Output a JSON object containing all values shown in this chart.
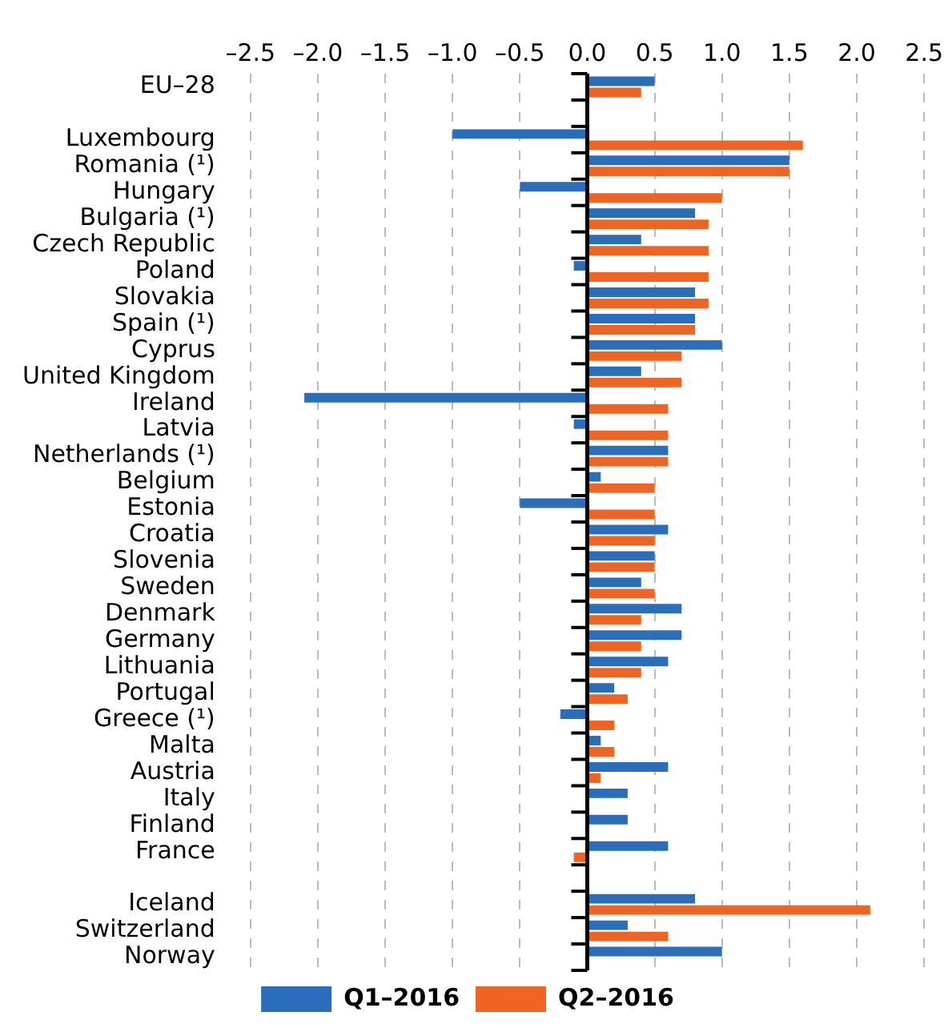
{
  "chart_data": {
    "type": "bar",
    "orientation": "horizontal",
    "categories": [
      "EU–28",
      null,
      "Luxembourg",
      "Romania (¹)",
      "Hungary",
      "Bulgaria (¹)",
      "Czech Republic",
      "Poland",
      "Slovakia",
      "Spain (¹)",
      "Cyprus",
      "United Kingdom",
      "Ireland",
      "Latvia",
      "Netherlands (¹)",
      "Belgium",
      "Estonia",
      "Croatia",
      "Slovenia",
      "Sweden",
      "Denmark",
      "Germany",
      "Lithuania",
      "Portugal",
      "Greece (¹)",
      "Malta",
      "Austria",
      "Italy",
      "Finland",
      "France",
      null,
      "Iceland",
      "Switzerland",
      "Norway"
    ],
    "series": [
      {
        "name": "Q1–2016",
        "color": "#2a6ebb",
        "values": [
          0.5,
          null,
          -1.0,
          1.5,
          -0.5,
          0.8,
          0.4,
          -0.1,
          0.8,
          0.8,
          1.0,
          0.4,
          -2.1,
          -0.1,
          0.6,
          0.1,
          -0.5,
          0.6,
          0.5,
          0.4,
          0.7,
          0.7,
          0.6,
          0.2,
          -0.2,
          0.1,
          0.6,
          0.3,
          0.3,
          0.6,
          null,
          0.8,
          0.3,
          1.0
        ]
      },
      {
        "name": "Q2–2016",
        "color": "#f06423",
        "values": [
          0.4,
          null,
          1.6,
          1.5,
          1.0,
          0.9,
          0.9,
          0.9,
          0.9,
          0.8,
          0.7,
          0.7,
          0.6,
          0.6,
          0.6,
          0.5,
          0.5,
          0.5,
          0.5,
          0.5,
          0.4,
          0.4,
          0.4,
          0.3,
          0.2,
          0.2,
          0.1,
          0.0,
          0.0,
          -0.1,
          null,
          2.1,
          0.6,
          0.0
        ]
      }
    ],
    "xlim": [
      -2.5,
      2.5
    ],
    "xticks": [
      {
        "value": -2.5,
        "label": "–2.5"
      },
      {
        "value": -2,
        "label": "–2.0"
      },
      {
        "value": -1.5,
        "label": "–1.5"
      },
      {
        "value": -1,
        "label": "–1.0"
      },
      {
        "value": -0.5,
        "label": "–0.5"
      },
      {
        "value": 0,
        "label": "0.0"
      },
      0.5,
      {
        "value": 1,
        "label": "1.0"
      },
      1.5,
      {
        "value": 2,
        "label": "2.0"
      },
      2.5
    ],
    "grid": "x",
    "legend": "bottom"
  }
}
